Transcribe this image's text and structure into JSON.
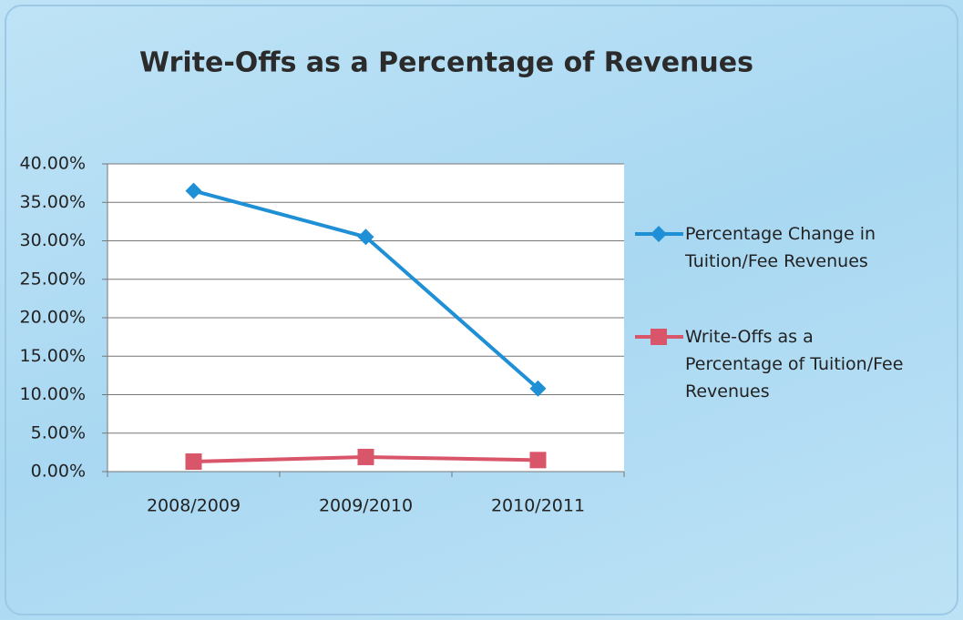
{
  "chart_data": {
    "type": "line",
    "title": "Write-Offs as a Percentage of Revenues",
    "categories": [
      "2008/2009",
      "2009/2010",
      "2010/2011"
    ],
    "series": [
      {
        "name": "Percentage Change in Tuition/Fee Revenues",
        "color": "#1f8fd6",
        "marker": "diamond",
        "values": [
          36.5,
          30.5,
          10.8
        ]
      },
      {
        "name": "Write-Offs as a Percentage of Tuition/Fee Revenues",
        "color": "#d9566a",
        "marker": "square",
        "values": [
          1.3,
          1.9,
          1.5
        ]
      }
    ],
    "ylim": [
      0,
      40
    ],
    "yticks": [
      {
        "value": 0,
        "label": "0.00%"
      },
      {
        "value": 5,
        "label": "5.00%"
      },
      {
        "value": 10,
        "label": "10.00%"
      },
      {
        "value": 15,
        "label": "15.00%"
      },
      {
        "value": 20,
        "label": "20.00%"
      },
      {
        "value": 25,
        "label": "25.00%"
      },
      {
        "value": 30,
        "label": "30.00%"
      },
      {
        "value": 35,
        "label": "35.00%"
      },
      {
        "value": 40,
        "label": "40.00%"
      }
    ],
    "grid": true,
    "legend": "right"
  }
}
